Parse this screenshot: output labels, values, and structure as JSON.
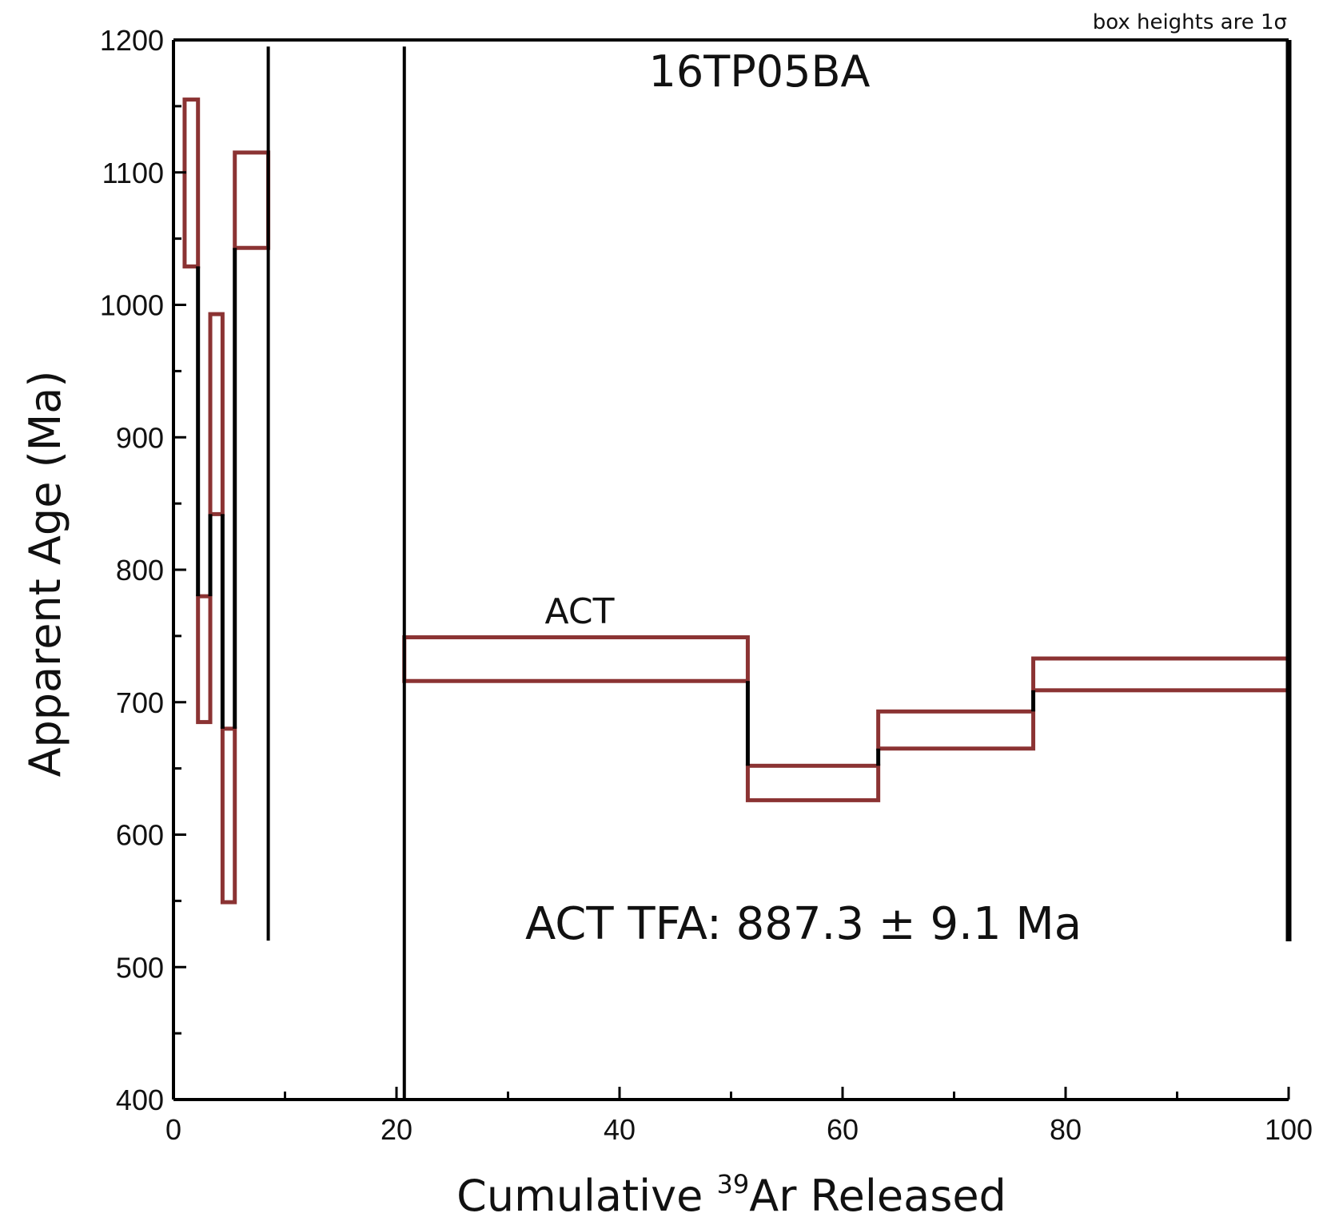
{
  "chart_data": {
    "type": "step-box",
    "title": "16TP05BA",
    "note": "box heights are 1σ",
    "xlabel_prefix": "Cumulative ",
    "xlabel_sup": "39",
    "xlabel_suffix": "Ar Released",
    "ylabel": "Apparent Age (Ma)",
    "xlim": [
      0,
      100
    ],
    "ylim": [
      400,
      1200
    ],
    "x_ticks": [
      "0",
      "20",
      "40",
      "60",
      "80",
      "100"
    ],
    "y_ticks": [
      "400",
      "500",
      "600",
      "700",
      "800",
      "900",
      "1000",
      "1100",
      "1200"
    ],
    "annotation": "ACT TFA: 887.3 ± 9.1 Ma",
    "plateau_label": "ACT",
    "box_color": "#8b3333",
    "line_color": "#000000",
    "steps": [
      {
        "x0": 1.0,
        "x1": 2.2,
        "lo": 1029,
        "hi": 1155
      },
      {
        "x0": 2.2,
        "x1": 3.3,
        "lo": 685,
        "hi": 780
      },
      {
        "x0": 3.3,
        "x1": 4.4,
        "lo": 842,
        "hi": 993
      },
      {
        "x0": 4.4,
        "x1": 5.5,
        "lo": 549,
        "hi": 680
      },
      {
        "x0": 5.5,
        "x1": 8.5,
        "lo": 1043,
        "hi": 1115
      },
      {
        "x0": 20.7,
        "x1": 51.5,
        "lo": 716,
        "hi": 749
      },
      {
        "x0": 51.5,
        "x1": 63.2,
        "lo": 626,
        "hi": 652
      },
      {
        "x0": 63.2,
        "x1": 77.1,
        "lo": 665,
        "hi": 693
      },
      {
        "x0": 77.1,
        "x1": 100.0,
        "lo": 709,
        "hi": 733
      }
    ]
  }
}
